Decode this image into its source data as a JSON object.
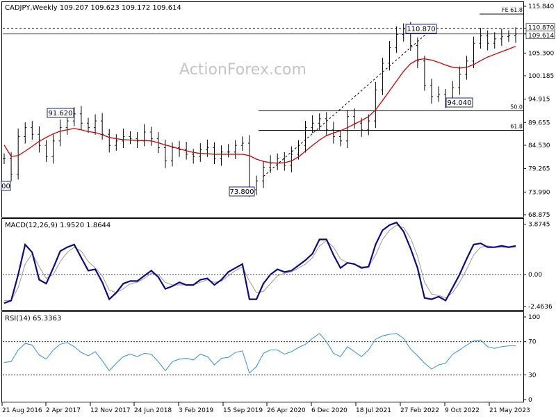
{
  "header": {
    "symbol_line": "CADJPY,Weekly  109.207 109.623 109.172 109.614",
    "watermark": "ActionForex.com"
  },
  "chart_data": [
    {
      "type": "candlestick",
      "title": "CADJPY,Weekly",
      "ohlc": {
        "open": 109.207,
        "high": 109.623,
        "low": 109.172,
        "close": 109.614
      },
      "y_ticks": [
        "115.840",
        "110.870",
        "109.614",
        "105.300",
        "100.185",
        "94.915",
        "89.655",
        "84.530",
        "79.265",
        "73.990",
        "68.875"
      ],
      "price_labels": [
        "110.870",
        "109.614"
      ],
      "annotations": [
        "91.620",
        "110.870",
        "94.040",
        "73.800",
        "00"
      ],
      "fib_levels": [
        {
          "label": "FE 61.8",
          "value": 114.1
        },
        {
          "label": "50.0",
          "value": 92.3
        },
        {
          "label": "61.8",
          "value": 87.9
        }
      ],
      "resistance_line": 110.87,
      "ylim": [
        68.875,
        115.84
      ],
      "x": [
        0,
        5,
        10,
        15,
        20,
        25,
        30,
        35,
        40,
        45,
        50,
        55,
        60,
        65,
        70,
        75,
        80,
        85,
        90,
        95,
        100,
        105,
        110,
        115,
        120,
        125,
        130,
        135,
        140,
        145,
        150,
        155,
        160,
        165,
        170,
        175,
        180,
        185,
        190,
        195,
        200,
        205,
        210,
        215,
        220,
        225,
        230,
        235,
        240,
        245,
        250,
        255,
        260,
        265,
        270,
        275,
        280,
        285,
        290,
        295,
        300,
        305,
        310,
        315,
        320,
        325,
        330,
        335,
        340,
        345,
        350,
        355,
        360,
        365
      ],
      "close": [
        81.5,
        78.0,
        86.5,
        88.5,
        87.0,
        84.5,
        82.0,
        85.5,
        88.5,
        90.0,
        91.6,
        89.5,
        88.5,
        90.0,
        87.0,
        84.5,
        85.5,
        86.5,
        86.0,
        85.5,
        87.5,
        86.0,
        84.0,
        81.0,
        84.0,
        83.5,
        82.5,
        82.0,
        83.5,
        84.0,
        81.5,
        83.0,
        83.0,
        84.5,
        85.0,
        74.5,
        76.5,
        79.5,
        80.5,
        81.5,
        80.0,
        82.5,
        84.5,
        88.5,
        89.5,
        90.5,
        88.0,
        86.5,
        85.5,
        91.0,
        89.5,
        88.0,
        90.0,
        97.0,
        103.0,
        106.5,
        109.5,
        110.8,
        107.0,
        103.5,
        98.0,
        95.5,
        96.0,
        94.5,
        97.5,
        100.5,
        103.5,
        107.5,
        109.2,
        107.5,
        108.5,
        109.0,
        109.2,
        109.6
      ],
      "ma": [
        84.6,
        82.0,
        82.2,
        83.2,
        84.3,
        85.4,
        86.3,
        87.1,
        87.7,
        88.0,
        88.3,
        88.0,
        87.6,
        87.4,
        86.9,
        86.3,
        86.0,
        85.8,
        85.7,
        85.6,
        85.6,
        85.5,
        85.1,
        84.6,
        84.2,
        83.7,
        83.3,
        82.9,
        82.7,
        82.6,
        82.5,
        82.5,
        82.5,
        82.5,
        82.5,
        82.2,
        81.4,
        80.9,
        80.6,
        80.5,
        80.6,
        81.0,
        81.9,
        83.2,
        84.5,
        85.7,
        86.7,
        87.3,
        87.8,
        88.5,
        89.3,
        90.1,
        91.0,
        92.5,
        94.6,
        96.8,
        99.0,
        101.2,
        102.9,
        103.8,
        104.0,
        103.7,
        103.2,
        102.6,
        102.1,
        101.9,
        102.1,
        102.7,
        103.6,
        104.4,
        105.0,
        105.6,
        106.2,
        106.8
      ]
    },
    {
      "type": "line",
      "title": "MACD(12,26,9) 1.9520 1.8644",
      "params": "12,26,9",
      "macd_value": 1.952,
      "signal_value": 1.8644,
      "y_ticks": [
        "3.8745",
        "0.00",
        "-2.4636"
      ],
      "ylim": [
        -2.7,
        4.0
      ],
      "macd": [
        -2.2,
        -2.0,
        0.0,
        2.3,
        1.7,
        -0.4,
        -0.7,
        0.5,
        1.8,
        2.1,
        2.3,
        1.3,
        0.3,
        0.4,
        -0.6,
        -1.9,
        -1.4,
        -0.7,
        -0.5,
        -0.5,
        -0.1,
        0.3,
        -0.2,
        -1.1,
        -0.9,
        -0.6,
        -0.8,
        -0.8,
        -0.4,
        -0.3,
        -0.8,
        -0.4,
        0.2,
        0.5,
        0.8,
        -1.9,
        -1.9,
        -0.7,
        0.0,
        0.4,
        0.2,
        0.3,
        0.7,
        1.1,
        1.6,
        2.7,
        2.7,
        1.5,
        0.5,
        0.9,
        0.8,
        0.5,
        0.6,
        2.3,
        3.4,
        3.8,
        4.0,
        3.3,
        2.0,
        0.5,
        -1.8,
        -1.9,
        -1.7,
        -2.0,
        -1.0,
        0.0,
        1.2,
        2.3,
        2.4,
        2.1,
        2.1,
        2.2,
        2.1,
        2.2
      ],
      "signal": [
        -2.0,
        -2.0,
        -1.0,
        0.8,
        1.6,
        0.6,
        -0.3,
        0.0,
        1.0,
        1.7,
        2.1,
        1.8,
        1.0,
        0.5,
        -0.1,
        -1.2,
        -1.4,
        -1.1,
        -0.7,
        -0.6,
        -0.3,
        0.1,
        0.0,
        -0.6,
        -0.8,
        -0.8,
        -0.8,
        -0.8,
        -0.6,
        -0.4,
        -0.6,
        -0.5,
        -0.1,
        0.3,
        0.6,
        -0.5,
        -1.4,
        -1.3,
        -0.7,
        -0.1,
        0.1,
        0.2,
        0.5,
        0.8,
        1.3,
        2.2,
        2.6,
        2.1,
        1.2,
        0.9,
        0.8,
        0.6,
        0.6,
        1.5,
        2.7,
        3.4,
        3.8,
        3.6,
        2.8,
        1.4,
        -0.6,
        -1.5,
        -1.6,
        -1.8,
        -1.4,
        -0.6,
        0.4,
        1.5,
        2.1,
        2.2,
        2.1,
        2.1,
        2.1,
        2.1
      ]
    },
    {
      "type": "line",
      "title": "RSI(14) 65.3363",
      "period": 14,
      "value": 65.3363,
      "y_ticks": [
        "100",
        "70",
        "30",
        "0"
      ],
      "levels": [
        70,
        30
      ],
      "ylim": [
        0,
        100
      ],
      "rsi": [
        45,
        46,
        60,
        68,
        66,
        54,
        49,
        60,
        67,
        69,
        64,
        57,
        53,
        58,
        47,
        35,
        44,
        52,
        55,
        52,
        56,
        55,
        46,
        35,
        46,
        49,
        50,
        48,
        55,
        52,
        42,
        50,
        51,
        57,
        59,
        32,
        40,
        56,
        60,
        60,
        55,
        58,
        63,
        67,
        74,
        80,
        70,
        56,
        52,
        64,
        58,
        52,
        60,
        73,
        77,
        79,
        80,
        74,
        61,
        53,
        44,
        37,
        42,
        44,
        55,
        60,
        66,
        71,
        72,
        64,
        62,
        64,
        65,
        65
      ]
    },
    {
      "type": "axis",
      "x_labels": [
        "21 Aug 2016",
        "2 Apr 2017",
        "12 Nov 2017",
        "24 Jun 2018",
        "3 Feb 2019",
        "15 Sep 2019",
        "26 Apr 2020",
        "6 Dec 2020",
        "18 Jul 2021",
        "27 Feb 2022",
        "9 Oct 2022",
        "21 May 2023"
      ]
    }
  ],
  "colors": {
    "price": "#000000",
    "ma": "#cc0000",
    "macd": "#0b0b8a",
    "signal": "#999999",
    "grid": "#000000",
    "rsi": "#3090e0",
    "label_box": "#1f1f8a",
    "watermark": "#bfbfbf"
  }
}
